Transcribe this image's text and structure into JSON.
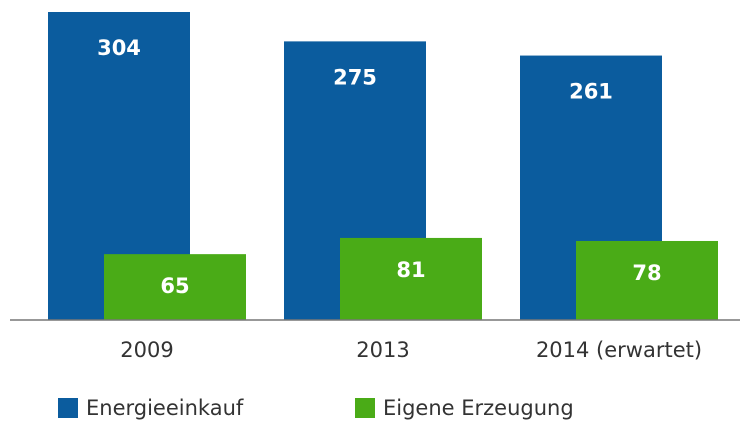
{
  "chart_data": {
    "type": "bar",
    "categories": [
      "2009",
      "2013",
      "2014 (erwartet)"
    ],
    "series": [
      {
        "name": "Energieeinkauf",
        "color": "#0b5c9e",
        "values": [
          304,
          275,
          261
        ]
      },
      {
        "name": "Eigene Erzeugung",
        "color": "#4aab17",
        "values": [
          65,
          81,
          78
        ]
      }
    ],
    "ylim": [
      0,
      304
    ]
  }
}
